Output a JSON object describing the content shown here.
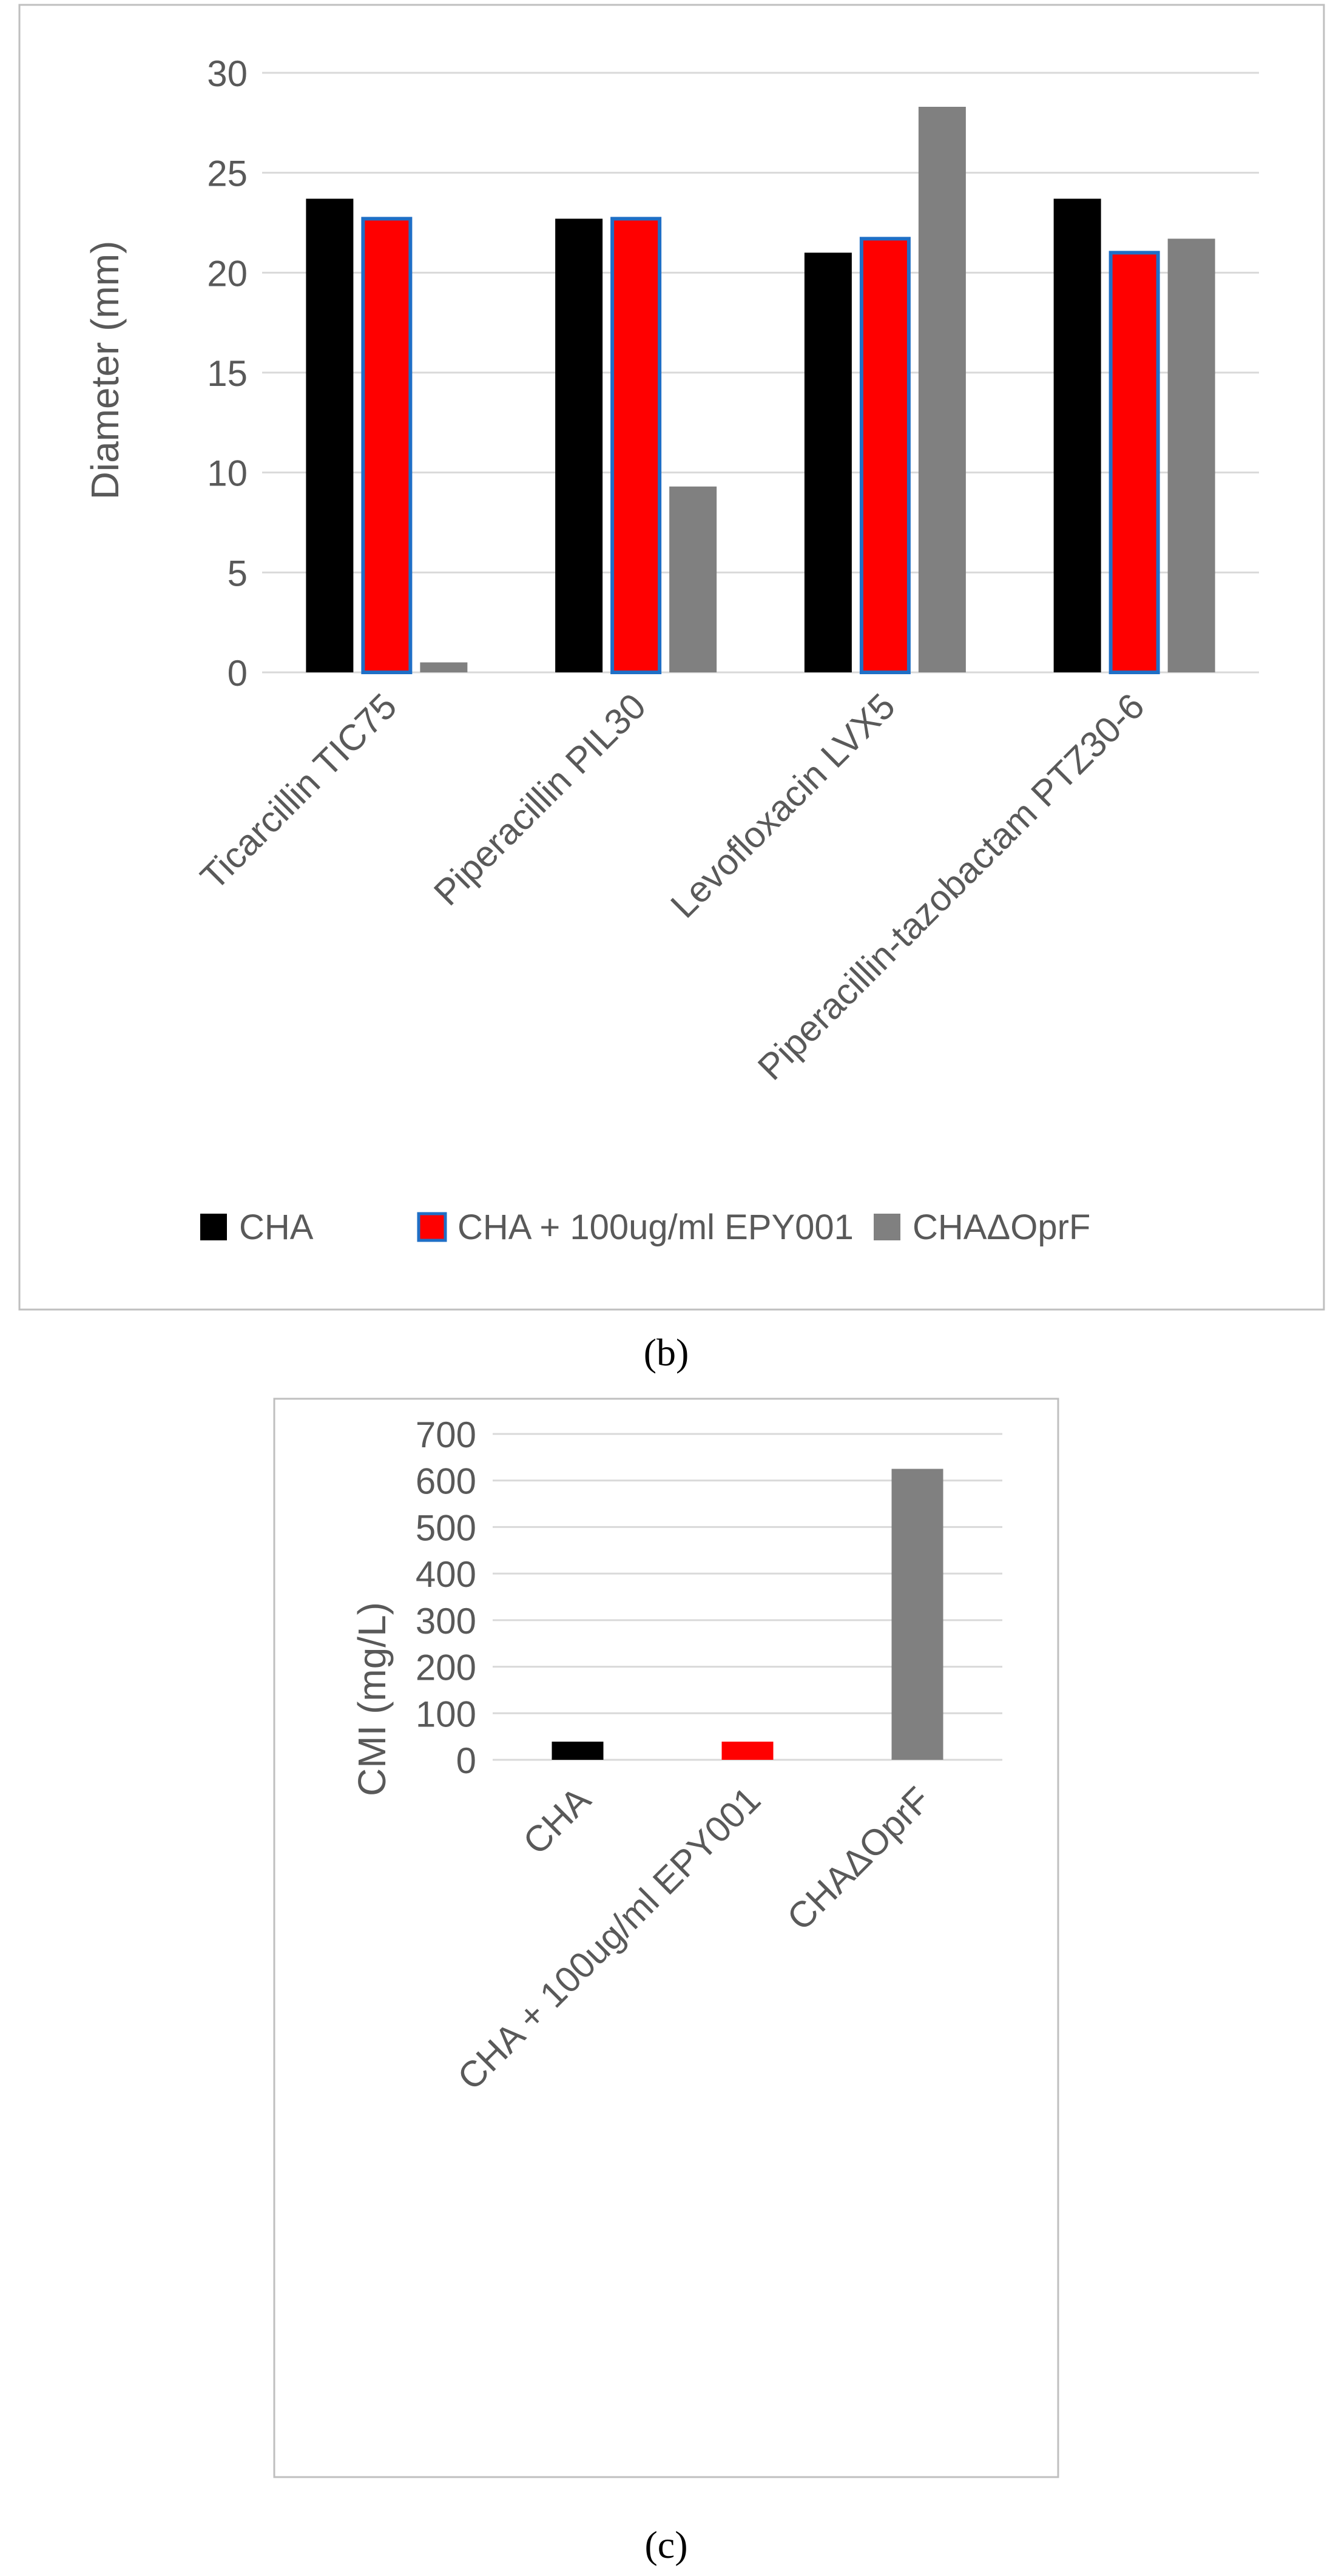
{
  "colors": {
    "cha": "#000000",
    "cha_epy": "#ff0000",
    "cha_epy_outline": "#1f6fc6",
    "cha_oprf": "#808080",
    "grid": "#d9d9d9",
    "frame": "#bfbfbf",
    "text": "#595959"
  },
  "chart_data": [
    {
      "type": "bar",
      "panel": "b",
      "caption": "(b)",
      "ylabel": "Diameter (mm)",
      "xlabel": "",
      "ylim": [
        0,
        30
      ],
      "yticks": [
        0,
        5,
        10,
        15,
        20,
        25,
        30
      ],
      "grid": true,
      "legend_position": "bottom",
      "categories": [
        "Ticarcillin TIC75",
        "Piperacillin PIL30",
        "Levofloxacin LVX5",
        "Piperacillin-tazobactam PTZ30-6"
      ],
      "series": [
        {
          "name": "CHA",
          "color": "#000000",
          "values": [
            23.7,
            22.7,
            21.0,
            23.7
          ]
        },
        {
          "name": "CHA + 100ug/ml EPY001",
          "color": "#ff0000",
          "outline": "#1f6fc6",
          "values": [
            22.7,
            22.7,
            21.7,
            21.0
          ]
        },
        {
          "name": "CHAΔOprF",
          "color": "#808080",
          "values": [
            0.5,
            9.3,
            28.3,
            21.7
          ]
        }
      ]
    },
    {
      "type": "bar",
      "panel": "c",
      "caption": "(c)",
      "ylabel": "CMI (mg/L)",
      "xlabel": "",
      "ylim": [
        0,
        700
      ],
      "yticks": [
        0,
        100,
        200,
        300,
        400,
        500,
        600,
        700
      ],
      "grid": true,
      "categories": [
        "CHA",
        "CHA + 100ug/ml EPY001",
        "CHAΔOprF"
      ],
      "values": [
        39,
        39,
        625
      ],
      "bar_colors": [
        "#000000",
        "#ff0000",
        "#808080"
      ]
    }
  ]
}
